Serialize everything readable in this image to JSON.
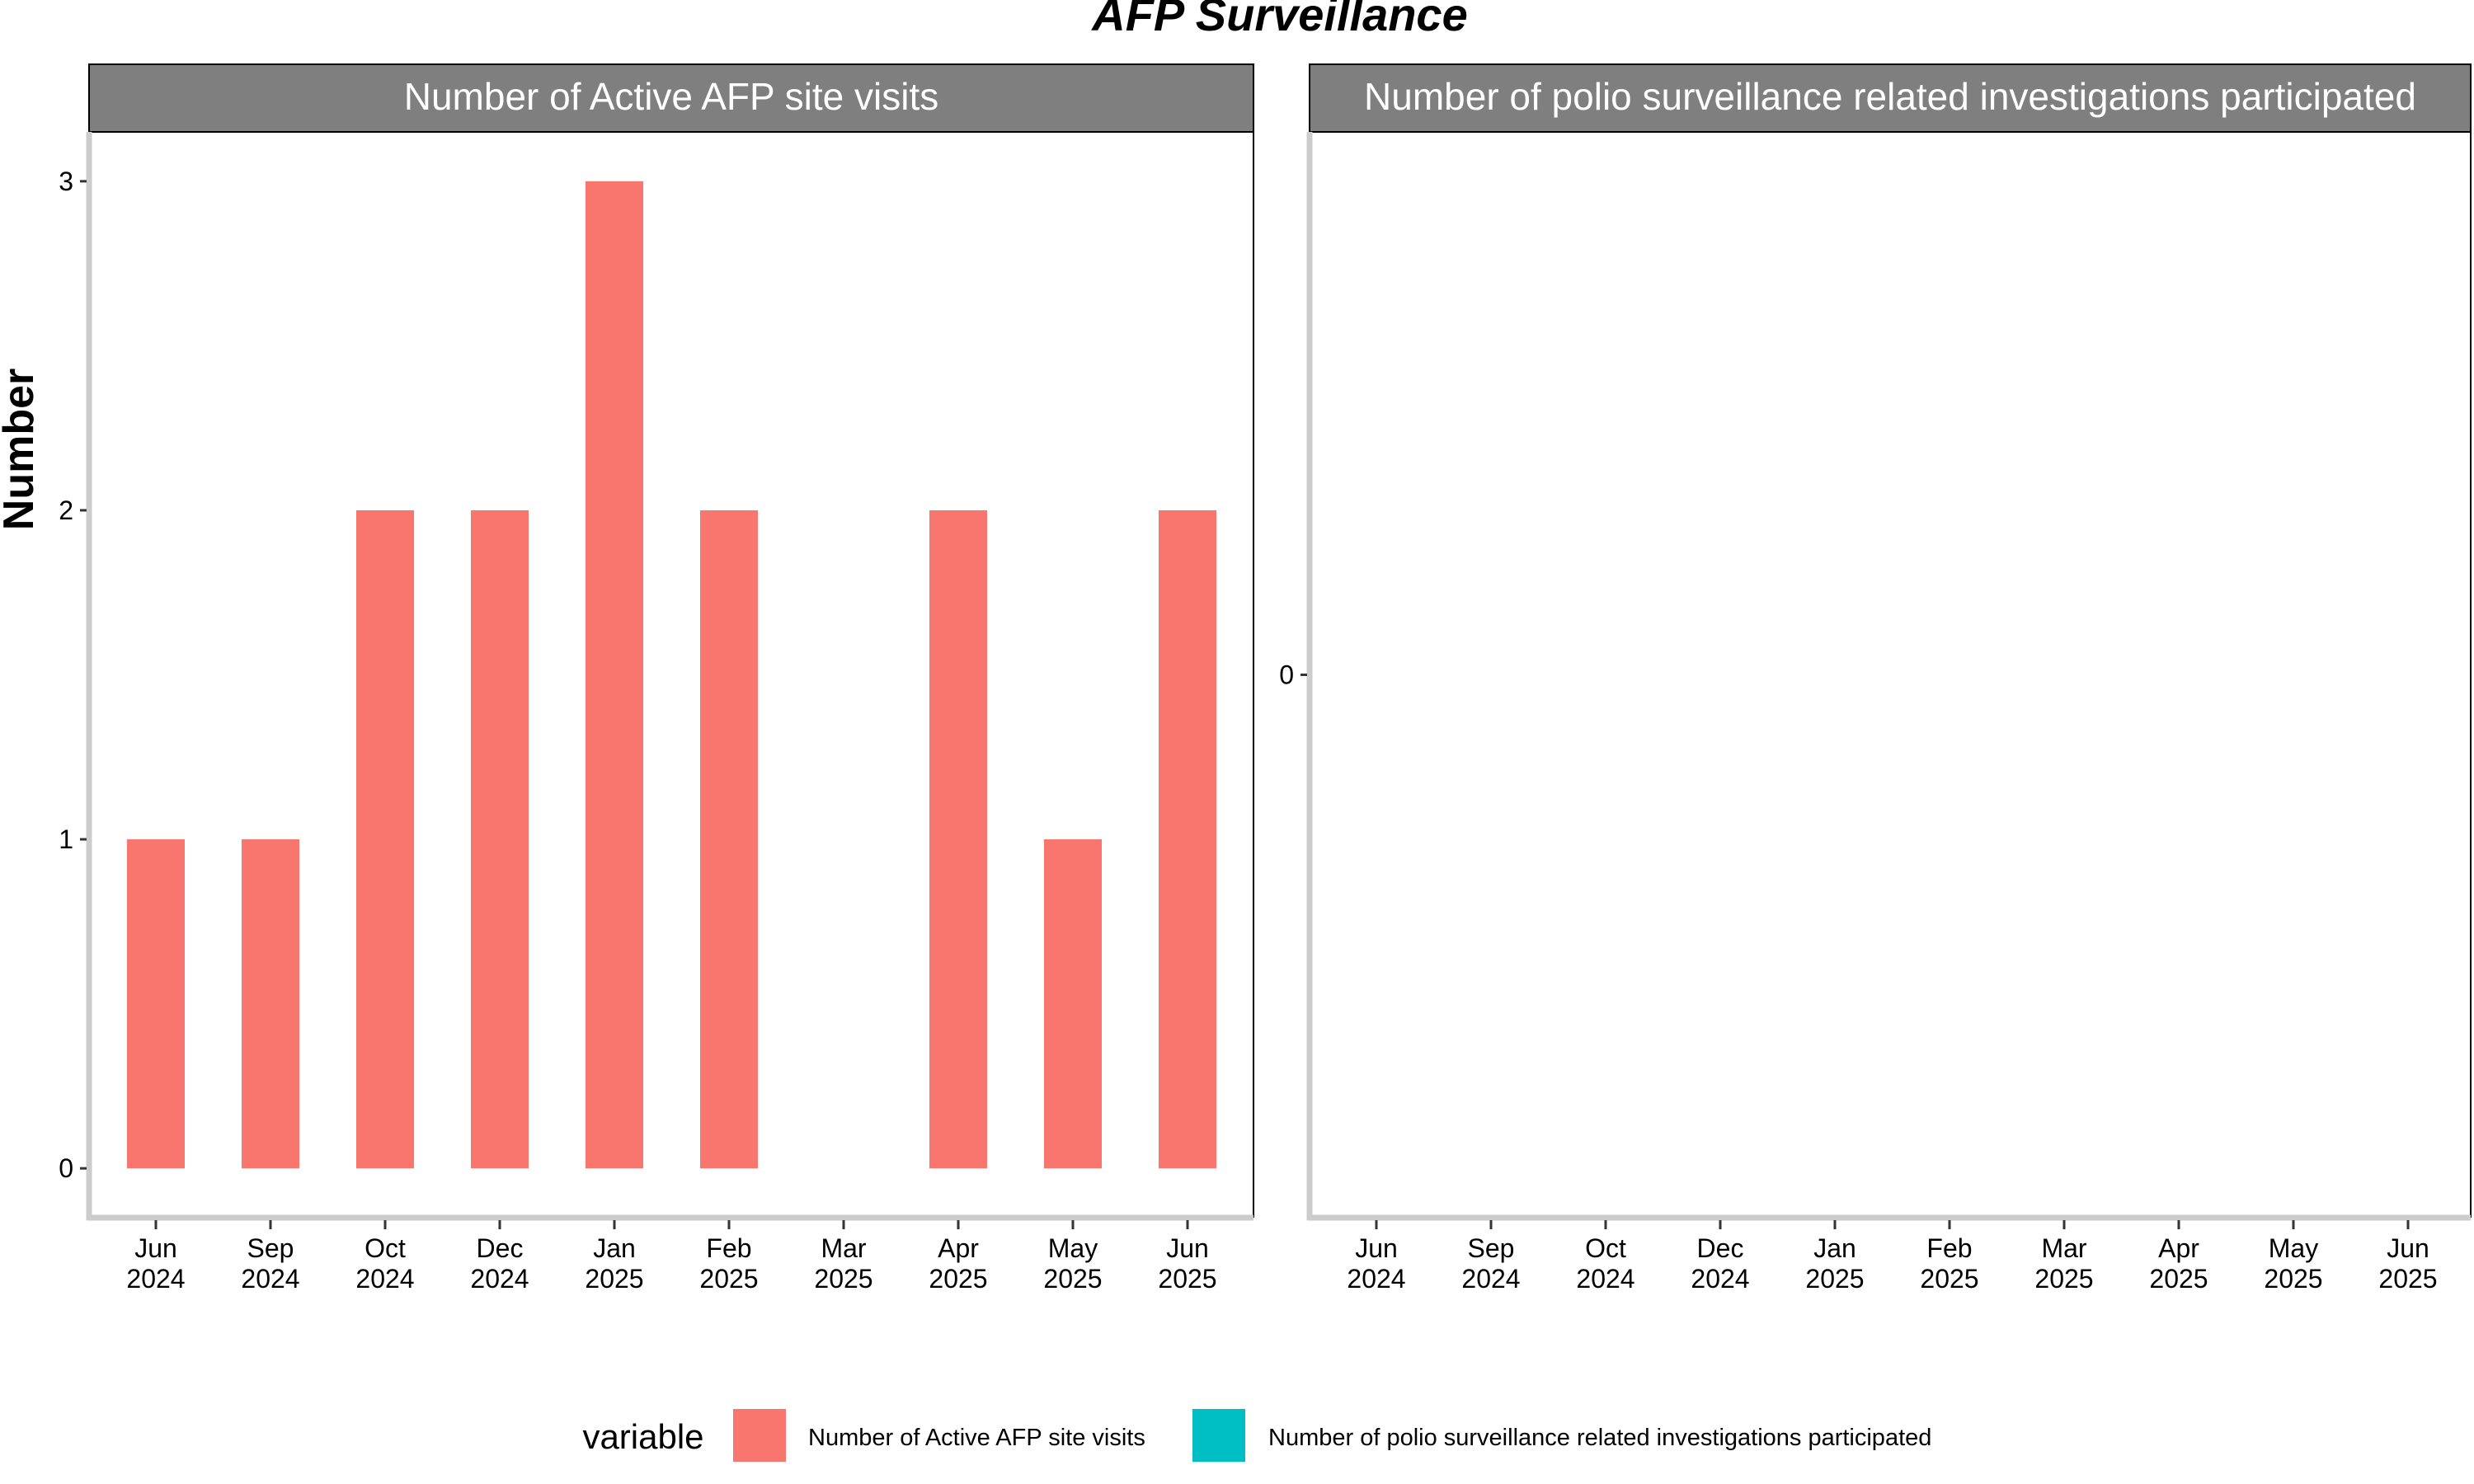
{
  "chart_data": {
    "type": "bar",
    "title": "AFP Surveillance",
    "xlabel": "",
    "ylabel": "Number",
    "grid": false,
    "legend": {
      "title": "variable",
      "position": "bottom",
      "items": [
        {
          "label": "Number of Active AFP site visits",
          "color": "#F8766D"
        },
        {
          "label": "Number of polio surveillance related investigations participated",
          "color": "#00BFC4"
        }
      ]
    },
    "categories": [
      [
        "Jun",
        "2024"
      ],
      [
        "Sep",
        "2024"
      ],
      [
        "Oct",
        "2024"
      ],
      [
        "Dec",
        "2024"
      ],
      [
        "Jan",
        "2025"
      ],
      [
        "Feb",
        "2025"
      ],
      [
        "Mar",
        "2025"
      ],
      [
        "Apr",
        "2025"
      ],
      [
        "May",
        "2025"
      ],
      [
        "Jun",
        "2025"
      ]
    ],
    "panels": [
      {
        "strip": "Number of Active AFP site visits",
        "color": "#F8766D",
        "yticks": [
          "0",
          "1",
          "2",
          "3"
        ],
        "ylim": [
          -0.15,
          3.15
        ],
        "values": [
          1,
          1,
          2,
          2,
          3,
          2,
          0,
          2,
          1,
          2
        ]
      },
      {
        "strip": "Number of polio surveillance related investigations participated",
        "color": "#00BFC4",
        "yticks": [
          "0"
        ],
        "ylim": [
          -1,
          1
        ],
        "values": [
          0,
          0,
          0,
          0,
          0,
          0,
          0,
          0,
          0,
          0
        ]
      }
    ]
  }
}
